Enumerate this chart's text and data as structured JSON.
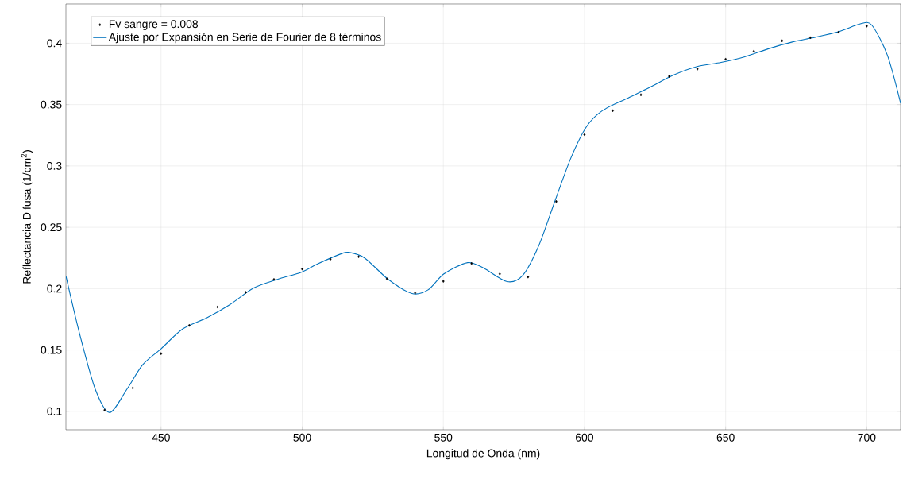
{
  "chart_data": {
    "type": "scatter",
    "xlabel": "Longitud de Onda (nm)",
    "ylabel": "Reflectancia Difusa (1/cm$^{2}$)",
    "xlim": [
      416.3,
      712
    ],
    "ylim": [
      0.085,
      0.432
    ],
    "xticks": [
      450,
      500,
      550,
      600,
      650,
      700
    ],
    "yticks": [
      0.1,
      0.15,
      0.2,
      0.25,
      0.3,
      0.35,
      0.4
    ],
    "grid": true,
    "legend": "top left",
    "series": [
      {
        "name": "Fv sangre = 0.008",
        "color": "#000000",
        "marker": "diamond",
        "x": [
          430,
          440,
          450,
          460,
          470,
          480,
          490,
          500,
          510,
          520,
          530,
          540,
          550,
          560,
          570,
          580,
          590,
          600,
          610,
          620,
          630,
          640,
          650,
          660,
          670,
          680,
          690,
          700
        ],
        "values": [
          0.101,
          0.119,
          0.147,
          0.17,
          0.185,
          0.197,
          0.2075,
          0.216,
          0.224,
          0.226,
          0.208,
          0.1965,
          0.206,
          0.2205,
          0.212,
          0.2095,
          0.271,
          0.3255,
          0.345,
          0.358,
          0.373,
          0.379,
          0.387,
          0.3935,
          0.402,
          0.4045,
          0.409,
          0.414
        ]
      },
      {
        "name": "Ajuste por Expansión en Serie de Fourier de 8 términos",
        "type": "line",
        "color": "#0072bd",
        "marker": "none",
        "line_style": "solid",
        "x": [
          416.3,
          421.1,
          426.7,
          431.8,
          437.9,
          443.5,
          450,
          457.6,
          466,
          474.4,
          482.8,
          491.2,
          499.7,
          505.3,
          513.7,
          516.5,
          522.1,
          530.5,
          538.9,
          544.6,
          550.2,
          558.6,
          564.3,
          572.6,
          578.2,
          583.8,
          589.4,
          595.1,
          600.7,
          606.3,
          614.7,
          623.1,
          631.5,
          639.9,
          648.4,
          656.8,
          665.2,
          673.6,
          682,
          690.4,
          697.5,
          701.7,
          707.3,
          712
        ],
        "values": [
          0.2103,
          0.1636,
          0.118,
          0.099,
          0.118,
          0.138,
          0.151,
          0.167,
          0.176,
          0.187,
          0.2005,
          0.2075,
          0.2134,
          0.22,
          0.2283,
          0.2296,
          0.225,
          0.2075,
          0.196,
          0.199,
          0.212,
          0.2212,
          0.2167,
          0.2057,
          0.211,
          0.235,
          0.2705,
          0.306,
          0.332,
          0.345,
          0.3546,
          0.364,
          0.374,
          0.381,
          0.3844,
          0.389,
          0.3955,
          0.401,
          0.405,
          0.4097,
          0.4156,
          0.415,
          0.3903,
          0.351
        ]
      }
    ]
  }
}
